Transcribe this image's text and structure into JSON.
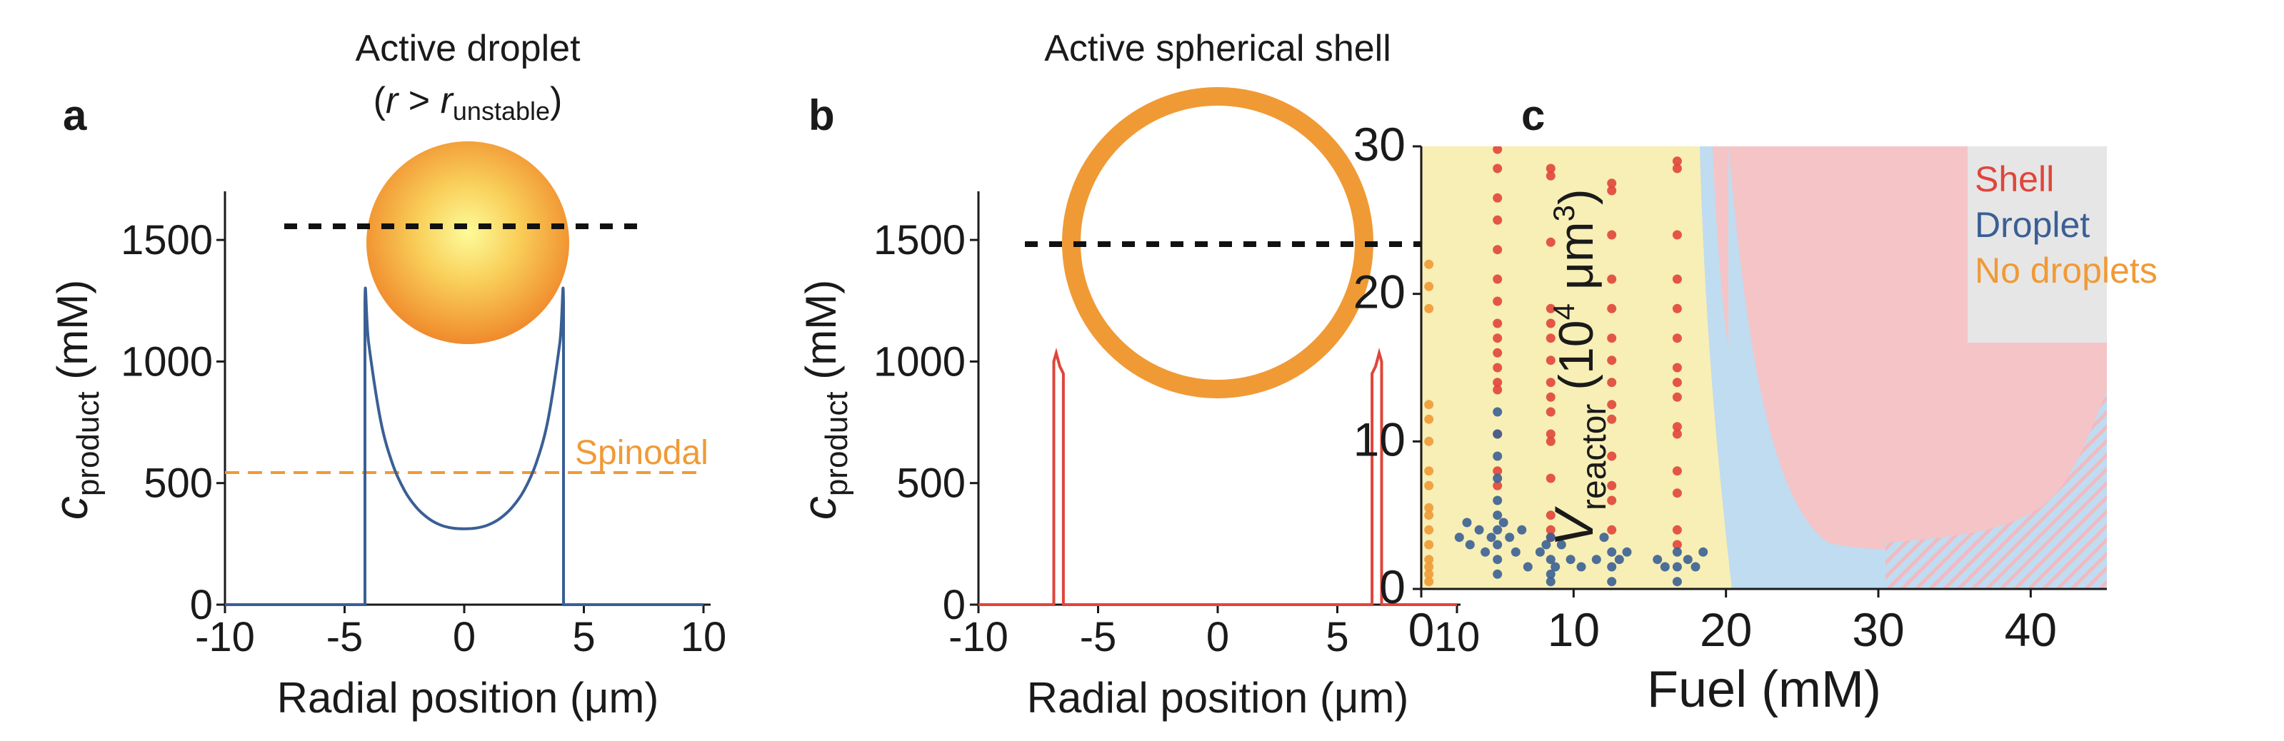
{
  "colors": {
    "droplet_blue": "#3a5f94",
    "shell_red": "#e0453a",
    "orange": "#f09a36",
    "shell_region": "#f5c4c6",
    "droplet_region": "#bfdcf1",
    "nodrop_region": "#f7efb6",
    "legend_bg": "#e6e6e6"
  },
  "panels": {
    "a": {
      "letter": "a",
      "caption_line1": "Active droplet",
      "caption_r": "r",
      "caption_gt": " > ",
      "caption_r2": "r",
      "caption_sub": "unstable",
      "caption_open": "(",
      "caption_close": ")",
      "ylabel_main": "c",
      "ylabel_sub": "product",
      "ylabel_unit": " (mM)",
      "xlabel": "Radial position (μm)",
      "spinodal_label": "Spinodal",
      "xticks": [
        "-10",
        "-5",
        "0",
        "5",
        "10"
      ],
      "yticks": [
        "0",
        "500",
        "1000",
        "1500"
      ]
    },
    "b": {
      "letter": "b",
      "caption": "Active spherical shell",
      "ylabel_main": "c",
      "ylabel_sub": "product",
      "ylabel_unit": " (mM)",
      "xlabel": "Radial position (μm)",
      "xticks": [
        "-10",
        "-5",
        "0",
        "5",
        "10"
      ],
      "yticks": [
        "0",
        "500",
        "1000",
        "1500"
      ]
    },
    "c": {
      "letter": "c",
      "ylabel_main": "V",
      "ylabel_sub": "reactor",
      "ylabel_open": " (10",
      "ylabel_exp": "4",
      "ylabel_unit": " μm",
      "ylabel_exp2": "3",
      "ylabel_close": ")",
      "xlabel": "Fuel (mM)",
      "xticks": [
        "0",
        "10",
        "20",
        "30",
        "40"
      ],
      "yticks": [
        "0",
        "10",
        "20",
        "30"
      ],
      "legend": [
        "Shell",
        "Droplet",
        "No droplets"
      ]
    }
  },
  "chart_data": [
    {
      "type": "line",
      "panel": "a",
      "x_range": [
        -10,
        10
      ],
      "y_range": [
        0,
        1700
      ],
      "series": [
        {
          "x": [
            -10,
            -4.15,
            -4.15,
            -4.0,
            -3.5,
            -3.0,
            -2.5,
            -2.0,
            -1.5,
            -1.0,
            -0.5,
            0,
            0.5,
            1.0,
            1.5,
            2.0,
            2.5,
            3.0,
            3.5,
            4.0,
            4.15,
            4.15,
            10
          ],
          "y": [
            0,
            0,
            1240,
            1080,
            760,
            580,
            470,
            400,
            355,
            328,
            315,
            312,
            315,
            328,
            355,
            400,
            470,
            580,
            760,
            1080,
            1240,
            0,
            0
          ]
        }
      ],
      "reference_lines": [
        {
          "y": 520,
          "label": "Spinodal",
          "style": "dashed"
        },
        {
          "y": 1480,
          "style": "dashed"
        }
      ]
    },
    {
      "type": "line",
      "panel": "b",
      "x_range": [
        -10,
        10
      ],
      "y_range": [
        0,
        1700
      ],
      "series": [
        {
          "x": [
            -10,
            -6.85,
            -6.85,
            -6.75,
            -6.6,
            -6.5,
            -6.45,
            -6.45,
            6.45,
            6.45,
            6.5,
            6.6,
            6.75,
            6.85,
            6.85,
            10
          ],
          "y": [
            0,
            0,
            1000,
            1035,
            980,
            960,
            950,
            0,
            0,
            950,
            960,
            980,
            1035,
            1000,
            0,
            0
          ]
        }
      ],
      "reference_lines": [
        {
          "y": 1400,
          "style": "dashed"
        }
      ]
    },
    {
      "type": "scatter",
      "panel": "c",
      "x_range": [
        0,
        45
      ],
      "y_range": [
        0,
        30
      ],
      "xlabel": "Fuel (mM)",
      "legend": [
        "Shell",
        "Droplet",
        "No droplets"
      ],
      "legend_position": "top-right",
      "series": [
        {
          "name": "No droplets",
          "x": [
            0.5,
            0.5,
            0.5,
            0.5,
            0.5,
            0.5,
            0.5,
            0.5,
            0.5,
            0.5,
            0.5,
            0.5,
            0.5,
            0.5,
            0.5,
            0.5
          ],
          "y": [
            22,
            20.5,
            19,
            12.5,
            11.5,
            10,
            8,
            7,
            5.5,
            5,
            4,
            3,
            2,
            1.5,
            1,
            0.5
          ]
        },
        {
          "name": "Shell",
          "x": [
            5,
            5,
            5,
            5,
            5,
            5,
            5,
            5,
            5,
            5,
            5,
            5,
            5,
            5,
            5,
            5,
            8.5,
            8.5,
            8.5,
            8.5,
            8.5,
            8.5,
            8.5,
            8.5,
            8.5,
            8.5,
            8.5,
            8.5,
            8.5,
            8.5,
            8.5,
            8.5,
            12.5,
            12.5,
            12.5,
            12.5,
            12.5,
            12.5,
            12.5,
            12.5,
            12.5,
            12.5,
            12.5,
            12.5,
            12.5,
            12.5,
            16.8,
            16.8,
            16.8,
            16.8,
            16.8,
            16.8,
            16.8,
            16.8,
            16.8,
            16.8,
            16.8,
            16.8,
            16.8,
            16.8,
            16.8
          ],
          "y": [
            29.8,
            28.5,
            26.5,
            25,
            23,
            21,
            19.5,
            18,
            17,
            16,
            15,
            14,
            13.5,
            10.5,
            8,
            7,
            28.5,
            28,
            23.5,
            19,
            18,
            17,
            15.5,
            14,
            13,
            12,
            10.5,
            10,
            7.5,
            5,
            4,
            3.5,
            27.5,
            27,
            24,
            21,
            19,
            17,
            15.5,
            14,
            12.5,
            11.5,
            9,
            7,
            6,
            4,
            29,
            28.5,
            24,
            21,
            19,
            17,
            15,
            14,
            13,
            11,
            10.5,
            8,
            6.5,
            4,
            3
          ]
        },
        {
          "name": "Droplet",
          "x": [
            2.5,
            3,
            3.2,
            3.8,
            4.2,
            4.6,
            5,
            5,
            5,
            5,
            5,
            5,
            5,
            5,
            5,
            5,
            5.4,
            5.8,
            6.2,
            6.6,
            7,
            7.8,
            8.2,
            8.5,
            8.5,
            8.5,
            8.5,
            8.8,
            9.2,
            9.8,
            10.5,
            11.5,
            12,
            12.5,
            12.5,
            12.5,
            13,
            13.5,
            15.5,
            16,
            16.8,
            16.8,
            16.8,
            17.5,
            18,
            18.5
          ],
          "y": [
            3.5,
            4.5,
            3,
            4,
            2.5,
            3.5,
            12,
            10.5,
            9,
            7.5,
            6,
            5,
            4,
            3,
            2,
            1,
            4.5,
            3.5,
            2.5,
            4,
            1.5,
            2.5,
            3,
            3.5,
            2,
            1,
            0.5,
            1.5,
            3,
            2,
            1.5,
            2,
            3.5,
            2.5,
            1.5,
            0.5,
            2,
            2.5,
            2,
            1.5,
            2.5,
            1.5,
            0.5,
            2,
            1.5,
            2.5
          ]
        }
      ]
    }
  ]
}
